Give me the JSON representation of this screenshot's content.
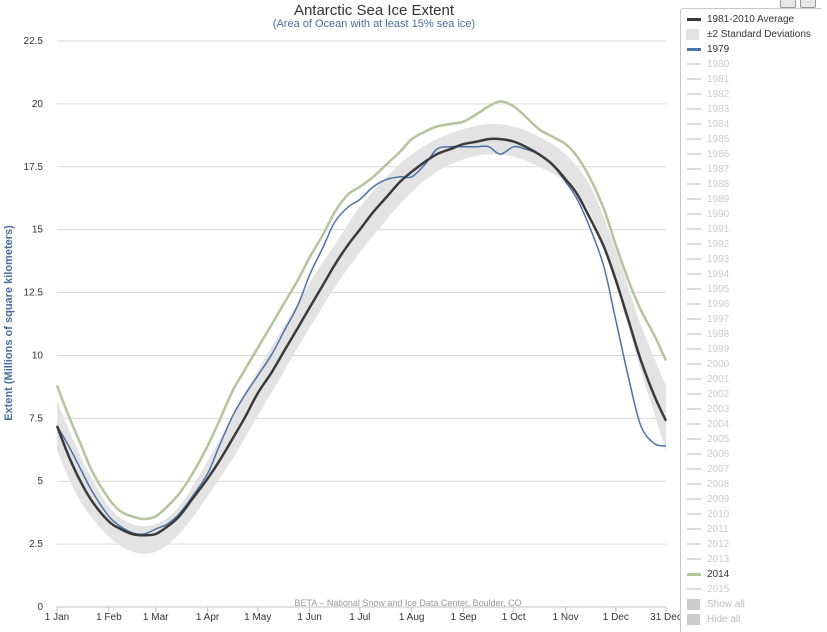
{
  "chart_data": {
    "type": "line",
    "title": "Antarctic Sea Ice Extent",
    "subtitle": "(Area of Ocean with at least 15% sea ice)",
    "ylabel": "Extent (Millions of square kilometers)",
    "credit": "BETA – National Snow and Ice Data Center, Boulder, CO",
    "ylim": [
      0,
      22.5
    ],
    "yticks": [
      "0",
      "2.5",
      "5",
      "7.5",
      "10",
      "12.5",
      "15",
      "17.5",
      "20",
      "22.5"
    ],
    "xlim": [
      1,
      365
    ],
    "xticks": [
      {
        "day": 1,
        "label": "1 Jan"
      },
      {
        "day": 32,
        "label": "1 Feb"
      },
      {
        "day": 60,
        "label": "1 Mar"
      },
      {
        "day": 91,
        "label": "1 Apr"
      },
      {
        "day": 121,
        "label": "1 May"
      },
      {
        "day": 152,
        "label": "1 Jun"
      },
      {
        "day": 182,
        "label": "1 Jul"
      },
      {
        "day": 213,
        "label": "1 Aug"
      },
      {
        "day": 244,
        "label": "1 Sep"
      },
      {
        "day": 274,
        "label": "1 Oct"
      },
      {
        "day": 305,
        "label": "1 Nov"
      },
      {
        "day": 335,
        "label": "1 Dec"
      },
      {
        "day": 365,
        "label": "31 Dec"
      }
    ],
    "grid": true,
    "legend_position": "right",
    "stddev_band": {
      "name": "±2 Standard Deviations",
      "color": "#e3e3e3",
      "x": [
        1,
        15,
        32,
        46,
        60,
        74,
        91,
        106,
        121,
        137,
        152,
        167,
        182,
        198,
        213,
        228,
        244,
        259,
        274,
        289,
        305,
        320,
        335,
        350,
        365
      ],
      "upper": [
        8.2,
        6.0,
        4.0,
        3.3,
        3.3,
        4.0,
        5.8,
        7.6,
        9.4,
        11.2,
        12.9,
        14.4,
        15.9,
        17.1,
        18.0,
        18.6,
        19.0,
        19.2,
        19.1,
        18.7,
        18.0,
        16.7,
        14.2,
        11.2,
        8.8
      ],
      "lower": [
        6.2,
        4.2,
        2.8,
        2.2,
        2.2,
        2.9,
        4.4,
        5.9,
        7.6,
        9.4,
        11.1,
        12.7,
        14.1,
        15.4,
        16.5,
        17.3,
        17.8,
        18.0,
        17.9,
        17.5,
        16.9,
        15.6,
        12.8,
        9.4,
        6.2
      ]
    },
    "series": [
      {
        "name": "1981-2010 Average",
        "color": "#3a3a3a",
        "width": 2.5,
        "x": [
          1,
          8,
          15,
          22,
          32,
          39,
          46,
          53,
          60,
          67,
          74,
          82,
          91,
          98,
          106,
          113,
          121,
          129,
          137,
          145,
          152,
          160,
          167,
          175,
          182,
          190,
          198,
          206,
          213,
          221,
          228,
          236,
          244,
          252,
          259,
          266,
          274,
          281,
          289,
          297,
          305,
          312,
          320,
          328,
          335,
          343,
          350,
          358,
          365
        ],
        "values": [
          7.2,
          6.0,
          5.0,
          4.2,
          3.4,
          3.1,
          2.9,
          2.85,
          2.9,
          3.2,
          3.6,
          4.3,
          5.1,
          5.8,
          6.7,
          7.5,
          8.5,
          9.3,
          10.2,
          11.1,
          11.9,
          12.8,
          13.6,
          14.4,
          15.0,
          15.7,
          16.3,
          16.9,
          17.3,
          17.7,
          18.0,
          18.2,
          18.4,
          18.5,
          18.6,
          18.6,
          18.5,
          18.3,
          18.0,
          17.6,
          17.0,
          16.4,
          15.4,
          14.3,
          13.0,
          11.3,
          9.8,
          8.4,
          7.4
        ]
      },
      {
        "name": "1979",
        "color": "#4a74a8",
        "width": 1.5,
        "x": [
          1,
          8,
          15,
          22,
          32,
          39,
          46,
          53,
          60,
          67,
          74,
          82,
          91,
          98,
          106,
          113,
          121,
          129,
          137,
          145,
          152,
          160,
          167,
          175,
          182,
          190,
          198,
          206,
          213,
          221,
          228,
          236,
          244,
          252,
          259,
          266,
          274,
          281,
          289,
          297,
          305,
          312,
          320,
          328,
          335,
          343,
          350,
          358,
          365
        ],
        "values": [
          7.2,
          6.4,
          5.5,
          4.6,
          3.6,
          3.2,
          2.95,
          2.9,
          3.1,
          3.3,
          3.7,
          4.4,
          5.3,
          6.4,
          7.6,
          8.4,
          9.2,
          10.0,
          11.0,
          12.0,
          13.2,
          14.3,
          15.3,
          15.9,
          16.2,
          16.7,
          17.0,
          17.1,
          17.1,
          17.6,
          18.2,
          18.3,
          18.3,
          18.3,
          18.3,
          18.0,
          18.3,
          18.2,
          18.0,
          17.6,
          16.9,
          16.2,
          15.0,
          13.5,
          11.4,
          9.0,
          7.2,
          6.5,
          6.4
        ]
      },
      {
        "name": "2014",
        "color": "#b4c49c",
        "width": 2.5,
        "x": [
          1,
          8,
          15,
          22,
          32,
          39,
          46,
          53,
          60,
          67,
          74,
          82,
          91,
          98,
          106,
          113,
          121,
          129,
          137,
          145,
          152,
          160,
          167,
          175,
          182,
          190,
          198,
          206,
          213,
          221,
          228,
          236,
          244,
          252,
          259,
          266,
          274,
          281,
          289,
          297,
          305,
          312,
          320,
          328,
          335,
          343,
          350,
          358,
          365
        ],
        "values": [
          8.8,
          7.6,
          6.5,
          5.4,
          4.3,
          3.8,
          3.6,
          3.5,
          3.6,
          4.0,
          4.5,
          5.3,
          6.4,
          7.4,
          8.6,
          9.4,
          10.3,
          11.2,
          12.1,
          13.0,
          13.9,
          14.8,
          15.7,
          16.4,
          16.7,
          17.1,
          17.6,
          18.1,
          18.6,
          18.9,
          19.1,
          19.2,
          19.3,
          19.6,
          19.9,
          20.1,
          19.9,
          19.5,
          19.0,
          18.7,
          18.4,
          17.9,
          17.0,
          15.8,
          14.4,
          12.9,
          11.8,
          10.8,
          9.8
        ]
      }
    ]
  },
  "legend": {
    "items": [
      {
        "label": "1981-2010 Average",
        "type": "line",
        "color": "#3a3a3a",
        "state": "active"
      },
      {
        "label": "±2 Standard Deviations",
        "type": "box",
        "color": "#e3e3e3",
        "state": "active"
      },
      {
        "label": "1979",
        "type": "line",
        "color": "#4a74a8",
        "state": "active"
      },
      {
        "label": "1980",
        "type": "line",
        "color": "#dddddd",
        "state": "hidden"
      },
      {
        "label": "1981",
        "type": "line",
        "color": "#dddddd",
        "state": "hidden"
      },
      {
        "label": "1982",
        "type": "line",
        "color": "#dddddd",
        "state": "hidden"
      },
      {
        "label": "1983",
        "type": "line",
        "color": "#dddddd",
        "state": "hidden"
      },
      {
        "label": "1984",
        "type": "line",
        "color": "#dddddd",
        "state": "hidden"
      },
      {
        "label": "1985",
        "type": "line",
        "color": "#dddddd",
        "state": "hidden"
      },
      {
        "label": "1986",
        "type": "line",
        "color": "#dddddd",
        "state": "hidden"
      },
      {
        "label": "1987",
        "type": "line",
        "color": "#dddddd",
        "state": "hidden"
      },
      {
        "label": "1988",
        "type": "line",
        "color": "#dddddd",
        "state": "hidden"
      },
      {
        "label": "1989",
        "type": "line",
        "color": "#dddddd",
        "state": "hidden"
      },
      {
        "label": "1990",
        "type": "line",
        "color": "#dddddd",
        "state": "hidden"
      },
      {
        "label": "1991",
        "type": "line",
        "color": "#dddddd",
        "state": "hidden"
      },
      {
        "label": "1992",
        "type": "line",
        "color": "#dddddd",
        "state": "hidden"
      },
      {
        "label": "1993",
        "type": "line",
        "color": "#dddddd",
        "state": "hidden"
      },
      {
        "label": "1994",
        "type": "line",
        "color": "#dddddd",
        "state": "hidden"
      },
      {
        "label": "1995",
        "type": "line",
        "color": "#dddddd",
        "state": "hidden"
      },
      {
        "label": "1996",
        "type": "line",
        "color": "#dddddd",
        "state": "hidden"
      },
      {
        "label": "1997",
        "type": "line",
        "color": "#dddddd",
        "state": "hidden"
      },
      {
        "label": "1998",
        "type": "line",
        "color": "#dddddd",
        "state": "hidden"
      },
      {
        "label": "1999",
        "type": "line",
        "color": "#dddddd",
        "state": "hidden"
      },
      {
        "label": "2000",
        "type": "line",
        "color": "#dddddd",
        "state": "hidden"
      },
      {
        "label": "2001",
        "type": "line",
        "color": "#dddddd",
        "state": "hidden"
      },
      {
        "label": "2002",
        "type": "line",
        "color": "#dddddd",
        "state": "hidden"
      },
      {
        "label": "2003",
        "type": "line",
        "color": "#dddddd",
        "state": "hidden"
      },
      {
        "label": "2004",
        "type": "line",
        "color": "#dddddd",
        "state": "hidden"
      },
      {
        "label": "2005",
        "type": "line",
        "color": "#dddddd",
        "state": "hidden"
      },
      {
        "label": "2006",
        "type": "line",
        "color": "#dddddd",
        "state": "hidden"
      },
      {
        "label": "2007",
        "type": "line",
        "color": "#dddddd",
        "state": "hidden"
      },
      {
        "label": "2008",
        "type": "line",
        "color": "#dddddd",
        "state": "hidden"
      },
      {
        "label": "2009",
        "type": "line",
        "color": "#dddddd",
        "state": "hidden"
      },
      {
        "label": "2010",
        "type": "line",
        "color": "#dddddd",
        "state": "hidden"
      },
      {
        "label": "2011",
        "type": "line",
        "color": "#dddddd",
        "state": "hidden"
      },
      {
        "label": "2012",
        "type": "line",
        "color": "#dddddd",
        "state": "hidden"
      },
      {
        "label": "2013",
        "type": "line",
        "color": "#dddddd",
        "state": "hidden"
      },
      {
        "label": "2014",
        "type": "line",
        "color": "#b4c49c",
        "state": "active"
      },
      {
        "label": "2015",
        "type": "line",
        "color": "#dddddd",
        "state": "hidden"
      }
    ],
    "show_all": "Show all",
    "hide_all": "Hide all"
  },
  "toolbar": {
    "icons": [
      "print-icon",
      "download-icon"
    ]
  }
}
